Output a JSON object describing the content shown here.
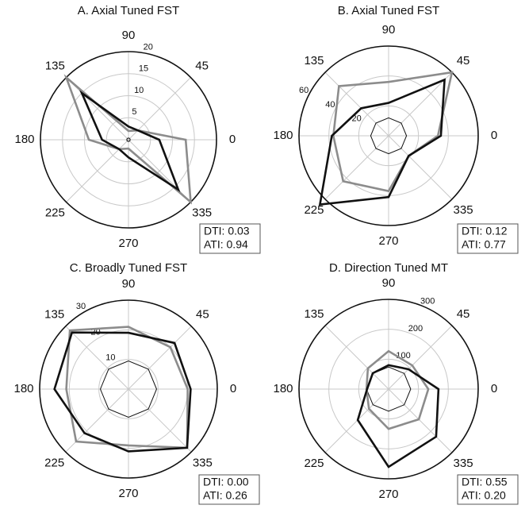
{
  "chart_data": [
    {
      "type": "polar",
      "title": "A. Axial Tuned FST",
      "categories": [
        "0",
        "45",
        "90",
        "135",
        "180",
        "225",
        "270",
        "335"
      ],
      "rlim": [
        0,
        20
      ],
      "rticks": [
        5,
        10,
        15,
        20
      ],
      "grid": true,
      "series": [
        {
          "color": "#8c8c8c",
          "values": [
            13,
            3,
            2,
            20,
            9,
            3,
            2,
            20
          ]
        },
        {
          "color": "#111111",
          "values": [
            7,
            3,
            3,
            15,
            6,
            3,
            4,
            16
          ]
        }
      ],
      "baseline": 0.4,
      "baseline_color": "#111111",
      "annotations": [
        "DTI: 0.03",
        "ATI: 0.94"
      ]
    },
    {
      "type": "polar",
      "title": "B. Axial Tuned FST",
      "categories": [
        "0",
        "45",
        "90",
        "135",
        "180",
        "225",
        "270",
        "335"
      ],
      "rlim": [
        0,
        60
      ],
      "rticks": [
        20,
        40,
        60
      ],
      "grid": true,
      "series": [
        {
          "color": "#8c8c8c",
          "values": [
            33,
            60,
            36,
            47,
            37,
            43,
            37,
            19
          ]
        },
        {
          "color": "#111111",
          "values": [
            35,
            53,
            22,
            26,
            38,
            65,
            41,
            19
          ]
        }
      ],
      "baseline": 12,
      "baseline_color": "#111111",
      "annotations": [
        "DTI: 0.12",
        "ATI: 0.77"
      ]
    },
    {
      "type": "polar",
      "title": "C. Broadly Tuned FST",
      "categories": [
        "0",
        "45",
        "90",
        "135",
        "180",
        "225",
        "270",
        "335"
      ],
      "rlim": [
        0,
        30
      ],
      "rticks": [
        10,
        20,
        30
      ],
      "grid": true,
      "series": [
        {
          "color": "#8c8c8c",
          "values": [
            20,
            20,
            21,
            28,
            21,
            25,
            19,
            28
          ]
        },
        {
          "color": "#111111",
          "values": [
            21,
            22,
            19,
            27,
            25,
            21,
            21,
            28
          ]
        }
      ],
      "baseline": 9.5,
      "baseline_color": "#111111",
      "annotations": [
        "DTI: 0.00",
        "ATI: 0.26"
      ]
    },
    {
      "type": "polar",
      "title": "D. Direction Tuned MT",
      "categories": [
        "0",
        "45",
        "90",
        "135",
        "180",
        "225",
        "270",
        "335"
      ],
      "rlim": [
        0,
        300
      ],
      "rticks": [
        100,
        200,
        300
      ],
      "grid": true,
      "series": [
        {
          "color": "#8c8c8c",
          "values": [
            133,
            112,
            127,
            98,
            74,
            93,
            133,
            143
          ]
        },
        {
          "color": "#111111",
          "values": [
            167,
            94,
            80,
            75,
            72,
            146,
            260,
            225
          ]
        }
      ],
      "baseline": 74,
      "baseline_color": "#111111",
      "annotations": [
        "DTI: 0.55",
        "ATI: 0.20"
      ]
    }
  ]
}
